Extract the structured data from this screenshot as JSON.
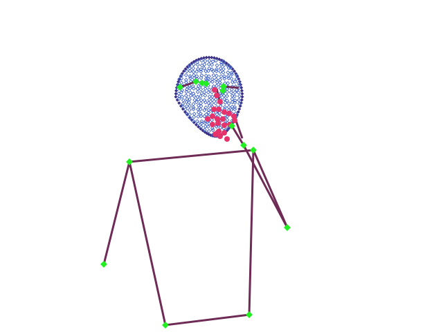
{
  "colors": {
    "background": "#ffffff",
    "bone": "#6e2b55",
    "joint": "#22ee22",
    "face_mesh": "#3f63c9",
    "face_outline": "#3b2f86",
    "mouth_points": "#e6336b"
  },
  "skeleton": {
    "joints": [
      "nose",
      "neck",
      "left-shoulder",
      "right-shoulder",
      "left-elbow",
      "right-elbow",
      "left-hip",
      "right-hip",
      "left-eye",
      "right-eye",
      "left-ear",
      "right-ear",
      "mouth"
    ],
    "connections": [
      [
        "left-shoulder",
        "right-shoulder"
      ],
      [
        "left-shoulder",
        "left-elbow"
      ],
      [
        "left-shoulder",
        "left-hip"
      ],
      [
        "right-shoulder",
        "right-hip"
      ],
      [
        "left-hip",
        "right-hip"
      ],
      [
        "neck",
        "right-elbow"
      ],
      [
        "right-shoulder",
        "right-elbow"
      ],
      [
        "nose",
        "neck"
      ]
    ]
  },
  "face": {
    "shape": "face-mesh",
    "features": [
      "face-outline",
      "eyes",
      "mouth"
    ]
  }
}
